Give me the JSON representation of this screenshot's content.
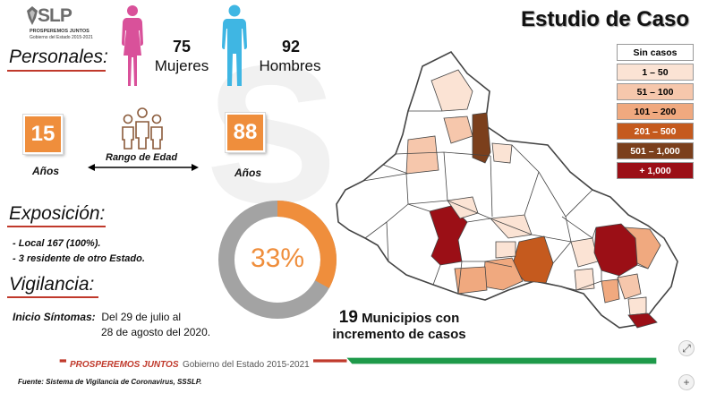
{
  "logo": {
    "name": "SLP",
    "tagline": "PROSPEREMOS JUNTOS",
    "subline": "Gobierno del Estado 2015-2021"
  },
  "title": "Estudio de Caso",
  "personales": {
    "label": "Personales:",
    "mujeres_count": "75",
    "mujeres_label": "Mujeres",
    "hombres_count": "92",
    "hombres_label": "Hombres"
  },
  "edad": {
    "min": "15",
    "max": "88",
    "unit_left": "Años",
    "unit_right": "Años",
    "rango_label": "Rango de Edad"
  },
  "exposicion": {
    "label": "Exposición:",
    "items": [
      "- Local 167 (100%).",
      "- 3 residente de otro Estado."
    ]
  },
  "donut": {
    "percent_label": "33%",
    "percent_value": 33,
    "color_fill": "#ef8e3c",
    "color_rest": "#a3a3a3"
  },
  "vigilancia": {
    "label": "Vigilancia:",
    "inicio_label": "Inicio Síntomas:",
    "inicio_line1": "Del 29 de julio al",
    "inicio_line2": "28 de agosto del 2020."
  },
  "municipios": {
    "count": "19",
    "line1_rest": "Municipios con",
    "line2": "incremento de casos"
  },
  "legend": [
    {
      "label": "Sin casos",
      "color": "#ffffff",
      "text_color": "#000000"
    },
    {
      "label": "1 – 50",
      "color": "#fbe3d4",
      "text_color": "#000000"
    },
    {
      "label": "51 – 100",
      "color": "#f6c7ac",
      "text_color": "#000000"
    },
    {
      "label": "101 – 200",
      "color": "#f0a97f",
      "text_color": "#000000"
    },
    {
      "label": "201 – 500",
      "color": "#c55a1e",
      "text_color": "#ffffff"
    },
    {
      "label": "501 – 1,000",
      "color": "#7b3f1c",
      "text_color": "#ffffff"
    },
    {
      "label": "+ 1,000",
      "color": "#9b0f16",
      "text_color": "#ffffff"
    }
  ],
  "footer": {
    "prosperemos": "PROSPEREMOS JUNTOS",
    "gobierno": "Gobierno del Estado 2015-2021",
    "fuente": "Fuente: Sistema de Vigilancia de Coronavirus, SSSLP.",
    "colors": {
      "red": "#c0392b",
      "green": "#1e9a4a"
    }
  }
}
